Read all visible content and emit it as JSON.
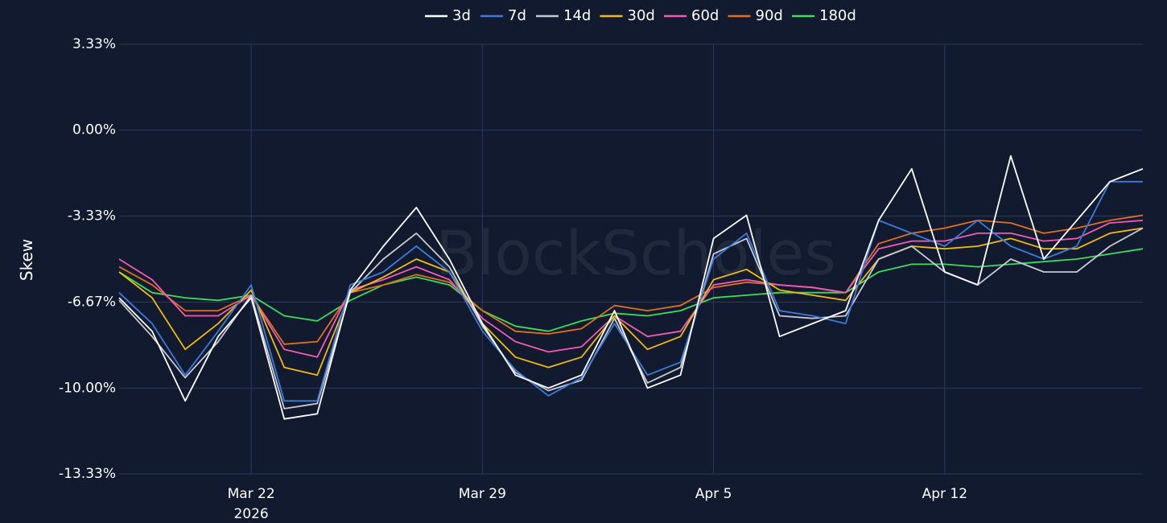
{
  "chart_data": {
    "type": "line",
    "watermark": "BlockScholes",
    "ylabel": "Skew",
    "y_ticks": [
      "3.33%",
      "0.00%",
      "-3.33%",
      "-6.67%",
      "-10.00%",
      "-13.33%"
    ],
    "y_tick_values": [
      3.33,
      0.0,
      -3.33,
      -6.67,
      -10.0,
      -13.33
    ],
    "ylim": [
      -13.33,
      3.33
    ],
    "x_ticks": [
      {
        "label": "Mar 22",
        "sublabel": "2026",
        "x": "2026-03-22"
      },
      {
        "label": "Mar 29",
        "sublabel": "",
        "x": "2026-03-29"
      },
      {
        "label": "Apr 5",
        "sublabel": "",
        "x": "2026-04-05"
      },
      {
        "label": "Apr 12",
        "sublabel": "",
        "x": "2026-04-12"
      }
    ],
    "xlim": [
      "2026-03-18",
      "2026-04-18"
    ],
    "grid": true,
    "legend_position": "top-center",
    "x": [
      "2026-03-18",
      "2026-03-19",
      "2026-03-20",
      "2026-03-21",
      "2026-03-22",
      "2026-03-23",
      "2026-03-24",
      "2026-03-25",
      "2026-03-26",
      "2026-03-27",
      "2026-03-28",
      "2026-03-29",
      "2026-03-30",
      "2026-03-31",
      "2026-04-01",
      "2026-04-02",
      "2026-04-03",
      "2026-04-04",
      "2026-04-05",
      "2026-04-06",
      "2026-04-07",
      "2026-04-08",
      "2026-04-09",
      "2026-04-10",
      "2026-04-11",
      "2026-04-12",
      "2026-04-13",
      "2026-04-14",
      "2026-04-15",
      "2026-04-16",
      "2026-04-17",
      "2026-04-18"
    ],
    "series": [
      {
        "name": "3d",
        "color": "#ffffff",
        "values": [
          -6.5,
          -7.8,
          -10.5,
          -8.0,
          -6.5,
          -11.2,
          -11.0,
          -6.2,
          -4.5,
          -3.0,
          -5.0,
          -7.5,
          -9.5,
          -10.0,
          -9.5,
          -7.0,
          -10.0,
          -9.5,
          -4.2,
          -3.3,
          -8.0,
          -7.5,
          -7.0,
          -3.5,
          -1.5,
          -5.5,
          -6.0,
          -1.0,
          -5.0,
          -3.5,
          -2.0,
          -1.5
        ]
      },
      {
        "name": "7d",
        "color": "#3a7bdc",
        "values": [
          -6.3,
          -7.5,
          -9.5,
          -7.8,
          -6.0,
          -10.5,
          -10.5,
          -6.0,
          -5.5,
          -4.5,
          -5.5,
          -7.8,
          -9.3,
          -10.3,
          -9.6,
          -7.5,
          -9.5,
          -9.0,
          -5.0,
          -4.0,
          -7.0,
          -7.2,
          -7.5,
          -3.5,
          -4.0,
          -4.5,
          -3.5,
          -4.5,
          -5.0,
          -4.5,
          -2.0,
          -2.0
        ]
      },
      {
        "name": "14d",
        "color": "#c8c8d0",
        "values": [
          -6.6,
          -8.0,
          -9.6,
          -8.2,
          -6.4,
          -10.8,
          -10.6,
          -6.3,
          -5.0,
          -4.0,
          -5.3,
          -7.6,
          -9.4,
          -10.1,
          -9.7,
          -7.3,
          -9.8,
          -9.2,
          -4.8,
          -4.2,
          -7.2,
          -7.3,
          -7.2,
          -5.0,
          -4.5,
          -5.5,
          -6.0,
          -5.0,
          -5.5,
          -5.5,
          -4.5,
          -3.8
        ]
      },
      {
        "name": "30d",
        "color": "#f2b90f",
        "values": [
          -5.5,
          -6.5,
          -8.5,
          -7.5,
          -6.2,
          -9.2,
          -9.5,
          -6.3,
          -5.7,
          -5.0,
          -5.5,
          -7.5,
          -8.8,
          -9.2,
          -8.8,
          -7.2,
          -8.5,
          -8.0,
          -5.8,
          -5.4,
          -6.2,
          -6.4,
          -6.6,
          -5.0,
          -4.5,
          -4.6,
          -4.5,
          -4.2,
          -4.6,
          -4.6,
          -4.0,
          -3.8
        ]
      },
      {
        "name": "60d",
        "color": "#f15bb5",
        "values": [
          -5.0,
          -5.8,
          -7.2,
          -7.2,
          -6.4,
          -8.5,
          -8.8,
          -6.2,
          -5.8,
          -5.3,
          -5.8,
          -7.3,
          -8.2,
          -8.6,
          -8.4,
          -7.2,
          -8.0,
          -7.8,
          -6.0,
          -5.8,
          -6.0,
          -6.1,
          -6.3,
          -4.6,
          -4.3,
          -4.3,
          -4.0,
          -4.0,
          -4.3,
          -4.2,
          -3.6,
          -3.5
        ]
      },
      {
        "name": "90d",
        "color": "#e0701e",
        "values": [
          -5.3,
          -6.0,
          -7.0,
          -7.0,
          -6.4,
          -8.3,
          -8.2,
          -6.3,
          -6.0,
          -5.6,
          -5.9,
          -7.0,
          -7.8,
          -7.9,
          -7.7,
          -6.8,
          -7.0,
          -6.8,
          -6.1,
          -5.9,
          -6.0,
          -6.1,
          -6.3,
          -4.4,
          -4.0,
          -3.8,
          -3.5,
          -3.6,
          -4.0,
          -3.8,
          -3.5,
          -3.3
        ]
      },
      {
        "name": "180d",
        "color": "#3ddc5b",
        "values": [
          -5.5,
          -6.3,
          -6.5,
          -6.6,
          -6.4,
          -7.2,
          -7.4,
          -6.6,
          -6.0,
          -5.7,
          -6.0,
          -7.0,
          -7.6,
          -7.8,
          -7.4,
          -7.1,
          -7.2,
          -7.0,
          -6.5,
          -6.4,
          -6.3,
          -6.3,
          -6.3,
          -5.5,
          -5.2,
          -5.2,
          -5.3,
          -5.2,
          -5.1,
          -5.0,
          -4.8,
          -4.6
        ]
      }
    ]
  }
}
